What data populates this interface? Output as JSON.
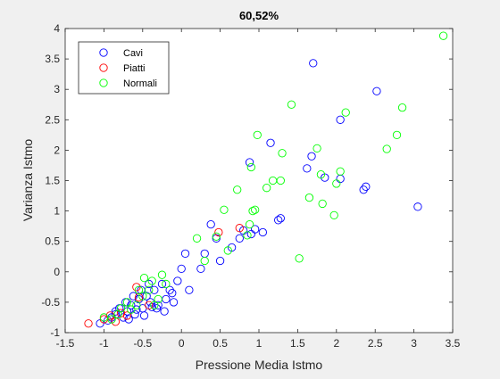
{
  "chart_data": {
    "type": "scatter",
    "title": "60,52%",
    "xlabel": "Pressione Media Istmo",
    "ylabel": "Varianza Istmo",
    "xlim": [
      -1.5,
      3.5
    ],
    "ylim": [
      -1,
      4
    ],
    "xticks": [
      -1.5,
      -1,
      -0.5,
      0,
      0.5,
      1,
      1.5,
      2,
      2.5,
      3,
      3.5
    ],
    "yticks": [
      -1,
      -0.5,
      0,
      0.5,
      1,
      1.5,
      2,
      2.5,
      3,
      3.5,
      4
    ],
    "xtick_labels": [
      "-1.5",
      "-1",
      "-0.5",
      "0",
      "0.5",
      "1",
      "1.5",
      "2",
      "2.5",
      "3",
      "3.5"
    ],
    "ytick_labels": [
      "-1",
      "-0.5",
      "0",
      "0.5",
      "1",
      "1.5",
      "2",
      "2.5",
      "3",
      "3.5",
      "4"
    ],
    "grid": false,
    "legend_position": "top-left",
    "marker": "open-circle",
    "series": [
      {
        "name": "Cavi",
        "color": "#0000ff",
        "points": [
          [
            -1.05,
            -0.85
          ],
          [
            -0.95,
            -0.8
          ],
          [
            -0.9,
            -0.75
          ],
          [
            -0.85,
            -0.7
          ],
          [
            -0.8,
            -0.6
          ],
          [
            -0.75,
            -0.75
          ],
          [
            -0.7,
            -0.65
          ],
          [
            -0.65,
            -0.55
          ],
          [
            -0.6,
            -0.7
          ],
          [
            -0.55,
            -0.45
          ],
          [
            -0.5,
            -0.6
          ],
          [
            -0.45,
            -0.4
          ],
          [
            -0.4,
            -0.5
          ],
          [
            -0.35,
            -0.3
          ],
          [
            -0.3,
            -0.55
          ],
          [
            -0.25,
            -0.2
          ],
          [
            -0.2,
            -0.45
          ],
          [
            -0.15,
            -0.3
          ],
          [
            -0.1,
            -0.5
          ],
          [
            -0.05,
            -0.15
          ],
          [
            0.0,
            0.05
          ],
          [
            0.05,
            0.3
          ],
          [
            -0.85,
            -0.65
          ],
          [
            -0.72,
            -0.5
          ],
          [
            -0.62,
            -0.4
          ],
          [
            -0.52,
            -0.3
          ],
          [
            -0.42,
            -0.2
          ],
          [
            -0.32,
            -0.6
          ],
          [
            -0.22,
            -0.65
          ],
          [
            -0.12,
            -0.35
          ],
          [
            0.1,
            -0.3
          ],
          [
            0.25,
            0.05
          ],
          [
            0.3,
            0.3
          ],
          [
            0.38,
            0.78
          ],
          [
            0.45,
            0.55
          ],
          [
            0.5,
            0.18
          ],
          [
            0.65,
            0.4
          ],
          [
            0.75,
            0.55
          ],
          [
            0.8,
            0.68
          ],
          [
            0.9,
            0.62
          ],
          [
            0.95,
            0.7
          ],
          [
            1.05,
            0.65
          ],
          [
            0.88,
            1.8
          ],
          [
            1.15,
            2.12
          ],
          [
            1.25,
            0.85
          ],
          [
            1.28,
            0.88
          ],
          [
            1.62,
            1.7
          ],
          [
            1.68,
            1.9
          ],
          [
            1.7,
            3.43
          ],
          [
            1.85,
            1.55
          ],
          [
            2.05,
            2.5
          ],
          [
            2.05,
            1.53
          ],
          [
            2.35,
            1.35
          ],
          [
            2.38,
            1.4
          ],
          [
            2.52,
            2.97
          ],
          [
            3.05,
            1.07
          ],
          [
            -0.68,
            -0.78
          ],
          [
            -0.58,
            -0.62
          ],
          [
            -0.48,
            -0.72
          ],
          [
            -0.38,
            -0.58
          ]
        ]
      },
      {
        "name": "Piatti",
        "color": "#ff0000",
        "points": [
          [
            -1.2,
            -0.85
          ],
          [
            -1.0,
            -0.78
          ],
          [
            -0.92,
            -0.72
          ],
          [
            -0.85,
            -0.82
          ],
          [
            -0.78,
            -0.68
          ],
          [
            -0.7,
            -0.72
          ],
          [
            -0.55,
            -0.42
          ],
          [
            -0.42,
            -0.55
          ],
          [
            -0.58,
            -0.25
          ],
          [
            0.48,
            0.65
          ],
          [
            0.75,
            0.72
          ]
        ]
      },
      {
        "name": "Normali",
        "color": "#00ff00",
        "points": [
          [
            -1.0,
            -0.75
          ],
          [
            -0.9,
            -0.78
          ],
          [
            -0.82,
            -0.7
          ],
          [
            -0.78,
            -0.6
          ],
          [
            -0.7,
            -0.5
          ],
          [
            -0.65,
            -0.62
          ],
          [
            -0.58,
            -0.55
          ],
          [
            -0.5,
            -0.4
          ],
          [
            -0.48,
            -0.1
          ],
          [
            -0.42,
            -0.3
          ],
          [
            -0.35,
            -0.55
          ],
          [
            -0.3,
            -0.45
          ],
          [
            -0.25,
            -0.05
          ],
          [
            -0.2,
            -0.2
          ],
          [
            -0.55,
            -0.3
          ],
          [
            -0.38,
            -0.15
          ],
          [
            0.2,
            0.55
          ],
          [
            0.3,
            0.18
          ],
          [
            0.45,
            0.58
          ],
          [
            0.55,
            1.02
          ],
          [
            0.6,
            0.35
          ],
          [
            0.72,
            1.35
          ],
          [
            0.85,
            0.6
          ],
          [
            0.88,
            0.78
          ],
          [
            0.92,
            1.0
          ],
          [
            0.95,
            1.02
          ],
          [
            0.9,
            1.72
          ],
          [
            0.98,
            2.25
          ],
          [
            1.1,
            1.38
          ],
          [
            1.18,
            1.5
          ],
          [
            1.28,
            1.5
          ],
          [
            1.3,
            1.95
          ],
          [
            1.42,
            2.75
          ],
          [
            1.52,
            0.22
          ],
          [
            1.65,
            1.22
          ],
          [
            1.75,
            2.03
          ],
          [
            1.8,
            1.6
          ],
          [
            1.82,
            1.12
          ],
          [
            1.97,
            0.93
          ],
          [
            2.0,
            1.45
          ],
          [
            2.05,
            1.65
          ],
          [
            2.12,
            2.62
          ],
          [
            2.65,
            2.02
          ],
          [
            2.78,
            2.25
          ],
          [
            2.85,
            2.7
          ],
          [
            3.38,
            3.88
          ]
        ]
      }
    ]
  }
}
